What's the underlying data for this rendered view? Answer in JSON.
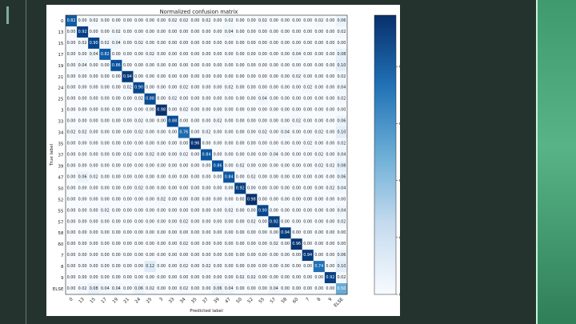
{
  "chart_data": {
    "type": "heatmap",
    "title": "Normalized confusion matrix",
    "xlabel": "Predicted label",
    "ylabel": "True label",
    "labels": [
      "0",
      "13",
      "15",
      "17",
      "19",
      "21",
      "24",
      "25",
      "3",
      "33",
      "34",
      "35",
      "37",
      "39",
      "47",
      "50",
      "52",
      "55",
      "57",
      "58",
      "60",
      "7",
      "8",
      "9",
      "ELSE"
    ],
    "matrix": [
      [
        0.82,
        0.0,
        0.02,
        0.0,
        0.0,
        0.0,
        0.0,
        0.0,
        0.0,
        0.02,
        0.02,
        0.0,
        0.02,
        0.0,
        0.02,
        0.0,
        0.0,
        0.02,
        0.0,
        0.0,
        0.0,
        0.0,
        0.02,
        0.0,
        0.06
      ],
      [
        0.0,
        0.92,
        0.0,
        0.0,
        0.02,
        0.0,
        0.0,
        0.0,
        0.0,
        0.0,
        0.0,
        0.0,
        0.0,
        0.0,
        0.04,
        0.0,
        0.0,
        0.0,
        0.0,
        0.0,
        0.0,
        0.0,
        0.0,
        0.0,
        0.02
      ],
      [
        0.0,
        0.02,
        0.9,
        0.02,
        0.04,
        0.0,
        0.02,
        0.0,
        0.0,
        0.0,
        0.0,
        0.0,
        0.0,
        0.0,
        0.0,
        0.0,
        0.0,
        0.0,
        0.0,
        0.0,
        0.0,
        0.0,
        0.0,
        0.0,
        0.0
      ],
      [
        0.0,
        0.0,
        0.04,
        0.82,
        0.0,
        0.0,
        0.0,
        0.02,
        0.0,
        0.0,
        0.0,
        0.0,
        0.0,
        0.0,
        0.0,
        0.0,
        0.0,
        0.0,
        0.0,
        0.0,
        0.04,
        0.0,
        0.0,
        0.0,
        0.08
      ],
      [
        0.0,
        0.04,
        0.0,
        0.0,
        0.86,
        0.0,
        0.0,
        0.0,
        0.0,
        0.0,
        0.0,
        0.0,
        0.0,
        0.0,
        0.0,
        0.0,
        0.0,
        0.0,
        0.0,
        0.0,
        0.0,
        0.0,
        0.0,
        0.0,
        0.1
      ],
      [
        0.0,
        0.0,
        0.0,
        0.0,
        0.0,
        0.94,
        0.0,
        0.0,
        0.0,
        0.0,
        0.0,
        0.0,
        0.0,
        0.0,
        0.0,
        0.0,
        0.0,
        0.0,
        0.0,
        0.0,
        0.02,
        0.0,
        0.0,
        0.0,
        0.02
      ],
      [
        0.0,
        0.0,
        0.0,
        0.0,
        0.0,
        0.02,
        0.9,
        0.0,
        0.0,
        0.0,
        0.02,
        0.0,
        0.0,
        0.0,
        0.02,
        0.0,
        0.0,
        0.0,
        0.0,
        0.0,
        0.0,
        0.02,
        0.0,
        0.0,
        0.04
      ],
      [
        0.0,
        0.0,
        0.0,
        0.0,
        0.0,
        0.0,
        0.02,
        0.88,
        0.0,
        0.02,
        0.0,
        0.0,
        0.0,
        0.0,
        0.0,
        0.0,
        0.0,
        0.04,
        0.0,
        0.0,
        0.0,
        0.0,
        0.0,
        0.0,
        0.02
      ],
      [
        0.0,
        0.0,
        0.0,
        0.0,
        0.0,
        0.0,
        0.0,
        0.0,
        0.98,
        0.0,
        0.02,
        0.0,
        0.0,
        0.0,
        0.0,
        0.0,
        0.0,
        0.0,
        0.0,
        0.0,
        0.0,
        0.0,
        0.0,
        0.0,
        0.0
      ],
      [
        0.0,
        0.0,
        0.0,
        0.0,
        0.0,
        0.0,
        0.02,
        0.0,
        0.0,
        0.88,
        0.0,
        0.0,
        0.0,
        0.02,
        0.0,
        0.0,
        0.0,
        0.0,
        0.0,
        0.0,
        0.02,
        0.0,
        0.0,
        0.0,
        0.06
      ],
      [
        0.02,
        0.02,
        0.0,
        0.0,
        0.0,
        0.0,
        0.02,
        0.0,
        0.0,
        0.0,
        0.76,
        0.0,
        0.02,
        0.0,
        0.0,
        0.0,
        0.0,
        0.02,
        0.0,
        0.04,
        0.0,
        0.0,
        0.02,
        0.0,
        0.1
      ],
      [
        0.0,
        0.0,
        0.0,
        0.0,
        0.0,
        0.0,
        0.0,
        0.0,
        0.0,
        0.0,
        0.0,
        0.96,
        0.0,
        0.0,
        0.0,
        0.0,
        0.0,
        0.0,
        0.0,
        0.0,
        0.0,
        0.02,
        0.0,
        0.0,
        0.02
      ],
      [
        0.0,
        0.0,
        0.0,
        0.0,
        0.0,
        0.02,
        0.0,
        0.02,
        0.0,
        0.0,
        0.02,
        0.0,
        0.84,
        0.0,
        0.0,
        0.0,
        0.0,
        0.0,
        0.04,
        0.0,
        0.0,
        0.0,
        0.02,
        0.0,
        0.04
      ],
      [
        0.0,
        0.0,
        0.0,
        0.0,
        0.0,
        0.0,
        0.0,
        0.0,
        0.0,
        0.0,
        0.0,
        0.0,
        0.0,
        0.86,
        0.0,
        0.02,
        0.0,
        0.0,
        0.0,
        0.0,
        0.0,
        0.0,
        0.02,
        0.02,
        0.08
      ],
      [
        0.0,
        0.06,
        0.02,
        0.0,
        0.0,
        0.0,
        0.0,
        0.0,
        0.0,
        0.0,
        0.0,
        0.0,
        0.0,
        0.0,
        0.84,
        0.0,
        0.02,
        0.0,
        0.0,
        0.0,
        0.0,
        0.0,
        0.0,
        0.0,
        0.06
      ],
      [
        0.0,
        0.0,
        0.0,
        0.0,
        0.0,
        0.0,
        0.02,
        0.0,
        0.0,
        0.0,
        0.0,
        0.0,
        0.0,
        0.0,
        0.0,
        0.92,
        0.0,
        0.0,
        0.0,
        0.0,
        0.0,
        0.0,
        0.0,
        0.02,
        0.04
      ],
      [
        0.0,
        0.0,
        0.0,
        0.0,
        0.0,
        0.0,
        0.0,
        0.0,
        0.02,
        0.0,
        0.0,
        0.0,
        0.0,
        0.0,
        0.0,
        0.0,
        0.98,
        0.0,
        0.0,
        0.0,
        0.0,
        0.0,
        0.0,
        0.0,
        0.0
      ],
      [
        0.0,
        0.0,
        0.0,
        0.02,
        0.0,
        0.0,
        0.0,
        0.0,
        0.0,
        0.0,
        0.0,
        0.0,
        0.0,
        0.0,
        0.02,
        0.0,
        0.0,
        0.9,
        0.0,
        0.0,
        0.0,
        0.0,
        0.0,
        0.0,
        0.04
      ],
      [
        0.0,
        0.0,
        0.0,
        0.0,
        0.0,
        0.0,
        0.0,
        0.0,
        0.0,
        0.0,
        0.02,
        0.0,
        0.0,
        0.0,
        0.0,
        0.0,
        0.02,
        0.0,
        0.92,
        0.0,
        0.0,
        0.0,
        0.0,
        0.0,
        0.02
      ],
      [
        0.0,
        0.0,
        0.0,
        0.0,
        0.0,
        0.0,
        0.0,
        0.0,
        0.0,
        0.0,
        0.0,
        0.0,
        0.0,
        0.0,
        0.0,
        0.0,
        0.0,
        0.0,
        0.0,
        0.94,
        0.0,
        0.0,
        0.0,
        0.0,
        0.0
      ],
      [
        0.0,
        0.0,
        0.0,
        0.0,
        0.0,
        0.0,
        0.0,
        0.0,
        0.0,
        0.0,
        0.02,
        0.0,
        0.0,
        0.0,
        0.0,
        0.0,
        0.0,
        0.0,
        0.02,
        0.0,
        0.96,
        0.0,
        0.0,
        0.0,
        0.0
      ],
      [
        0.0,
        0.0,
        0.0,
        0.0,
        0.0,
        0.0,
        0.0,
        0.0,
        0.0,
        0.0,
        0.0,
        0.0,
        0.0,
        0.0,
        0.0,
        0.0,
        0.0,
        0.0,
        0.0,
        0.0,
        0.0,
        0.94,
        0.0,
        0.0,
        0.06
      ],
      [
        0.0,
        0.0,
        0.0,
        0.0,
        0.0,
        0.0,
        0.0,
        0.12,
        0.0,
        0.0,
        0.02,
        0.0,
        0.02,
        0.0,
        0.0,
        0.0,
        0.0,
        0.0,
        0.0,
        0.0,
        0.0,
        0.0,
        0.74,
        0.0,
        0.1
      ],
      [
        0.0,
        0.0,
        0.0,
        0.0,
        0.0,
        0.0,
        0.0,
        0.0,
        0.0,
        0.0,
        0.0,
        0.0,
        0.0,
        0.0,
        0.0,
        0.02,
        0.02,
        0.0,
        0.0,
        0.0,
        0.0,
        0.0,
        0.0,
        0.92,
        0.02
      ],
      [
        0.0,
        0.02,
        0.08,
        0.04,
        0.04,
        0.0,
        0.06,
        0.02,
        0.0,
        0.0,
        0.02,
        0.0,
        0.0,
        0.06,
        0.04,
        0.0,
        0.0,
        0.0,
        0.04,
        0.0,
        0.0,
        0.0,
        0.0,
        0.0,
        0.5
      ]
    ],
    "colorbar": {
      "ticks": [
        0.0,
        0.2,
        0.4,
        0.6,
        0.8
      ],
      "tick_labels": [
        "0.0",
        "0.2",
        "0.4",
        "0.6",
        "0.8"
      ],
      "min": 0.0,
      "max": 0.98
    },
    "colormap": "Blues",
    "colors": {
      "low": "#f7fbff",
      "high": "#08306b"
    }
  },
  "slide": {
    "background": "#25332f",
    "accent": "#4fa87c"
  }
}
